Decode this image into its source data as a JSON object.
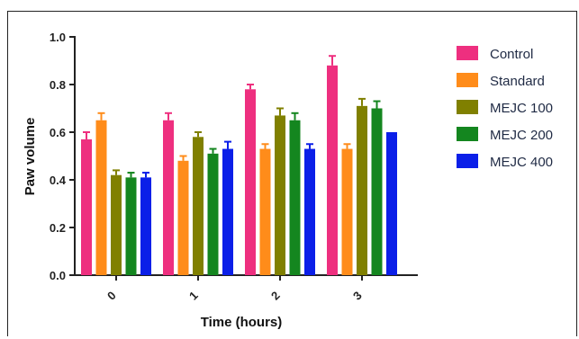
{
  "chart_data": {
    "type": "bar",
    "title": "",
    "xlabel": "Time (hours)",
    "ylabel": "Paw volume",
    "ylim": [
      0.0,
      1.0
    ],
    "yticks": [
      "0.0",
      "0.2",
      "0.4",
      "0.6",
      "0.8",
      "1.0"
    ],
    "categories": [
      "0",
      "1",
      "2",
      "3"
    ],
    "legend_position": "right",
    "grid": false,
    "series": [
      {
        "name": "Control",
        "color": "#ee2f7f",
        "values": [
          0.57,
          0.65,
          0.78,
          0.88
        ],
        "errors": [
          0.03,
          0.03,
          0.02,
          0.04
        ]
      },
      {
        "name": "Standard",
        "color": "#ff8c1a",
        "values": [
          0.65,
          0.48,
          0.53,
          0.53
        ],
        "errors": [
          0.03,
          0.02,
          0.02,
          0.02
        ]
      },
      {
        "name": "MEJC 100",
        "color": "#808000",
        "values": [
          0.42,
          0.58,
          0.67,
          0.71
        ],
        "errors": [
          0.02,
          0.02,
          0.03,
          0.03
        ]
      },
      {
        "name": "MEJC 200",
        "color": "#14861f",
        "values": [
          0.41,
          0.51,
          0.65,
          0.7
        ],
        "errors": [
          0.02,
          0.02,
          0.03,
          0.03
        ]
      },
      {
        "name": "MEJC 400",
        "color": "#0b1fe8",
        "values": [
          0.41,
          0.53,
          0.53,
          0.6
        ],
        "errors": [
          0.02,
          0.03,
          0.02,
          0.0
        ]
      }
    ]
  }
}
